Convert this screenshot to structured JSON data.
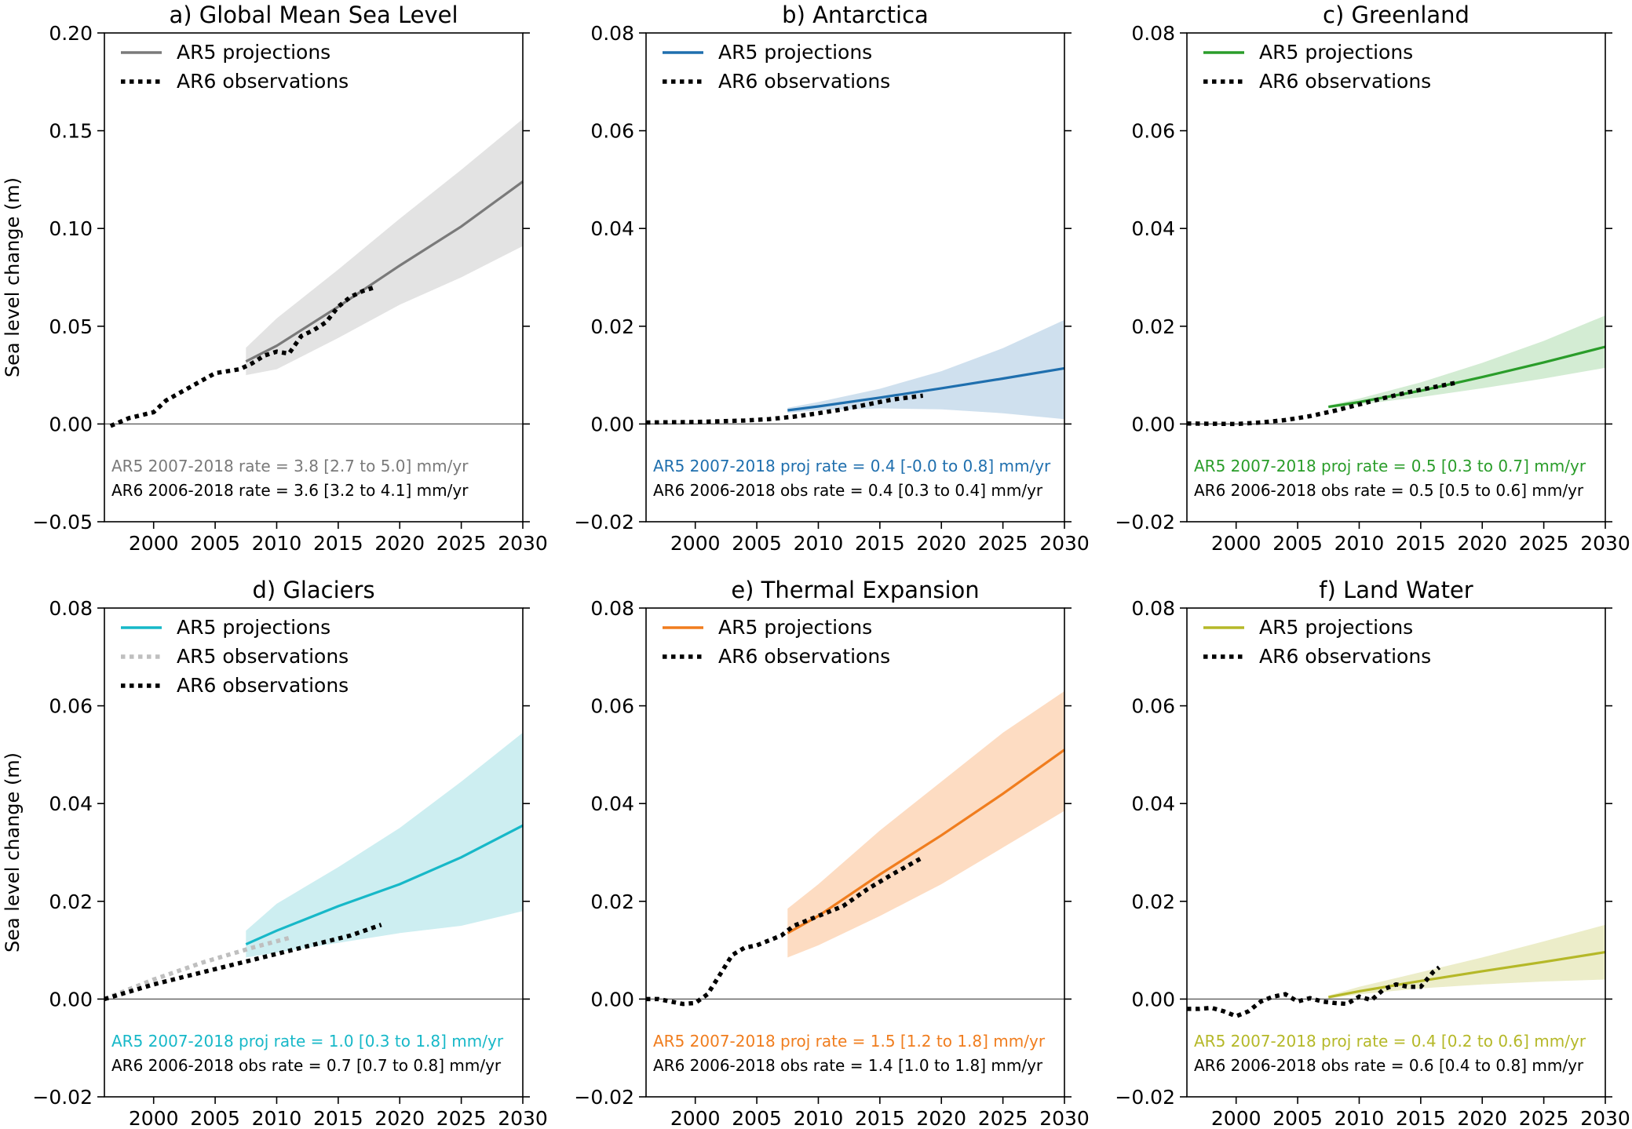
{
  "chart_data": [
    {
      "type": "line",
      "title": "a) Global Mean Sea Level",
      "ylabel": "Sea level change (m)",
      "xlim": [
        1996,
        2030
      ],
      "ylim": [
        -0.05,
        0.2
      ],
      "xticks": [
        2000,
        2005,
        2010,
        2015,
        2020,
        2025,
        2030
      ],
      "yticks": [
        "−0.05",
        "0.00",
        "0.05",
        "0.10",
        "0.15",
        "0.20"
      ],
      "ytick_values": [
        -0.05,
        0,
        0.05,
        0.1,
        0.15,
        0.2
      ],
      "color": "#7a7a7a",
      "band_color": "#e3e3e3",
      "legend": [
        "AR5 projections",
        "AR6 observations"
      ],
      "annotations": [
        {
          "text": "AR5 2007-2018 rate = 3.8 [2.7 to 5.0] mm/yr",
          "color": "#7a7a7a"
        },
        {
          "text": "AR6 2006-2018 rate = 3.6 [3.2 to 4.1] mm/yr",
          "color": "#000000"
        }
      ],
      "projection": {
        "x": [
          2007.5,
          2010,
          2015,
          2020,
          2025,
          2030
        ],
        "y": [
          0.032,
          0.04,
          0.06,
          0.081,
          0.101,
          0.124
        ]
      },
      "band_upper": {
        "x": [
          2007.5,
          2010,
          2015,
          2020,
          2025,
          2030
        ],
        "y": [
          0.039,
          0.054,
          0.079,
          0.105,
          0.13,
          0.156
        ]
      },
      "band_lower": {
        "x": [
          2007.5,
          2010,
          2015,
          2020,
          2025,
          2030
        ],
        "y": [
          0.025,
          0.028,
          0.044,
          0.061,
          0.075,
          0.091
        ]
      },
      "observations": [
        {
          "name": "AR6 observations",
          "color": "#000000",
          "x": [
            1996.5,
            1998,
            2000,
            2001,
            2003,
            2005,
            2007,
            2008,
            2009,
            2010,
            2011,
            2012,
            2013,
            2014,
            2015,
            2016,
            2017,
            2018
          ],
          "y": [
            -0.001,
            0.003,
            0.006,
            0.012,
            0.019,
            0.026,
            0.028,
            0.031,
            0.035,
            0.037,
            0.036,
            0.045,
            0.048,
            0.052,
            0.06,
            0.065,
            0.068,
            0.07
          ]
        }
      ]
    },
    {
      "type": "line",
      "title": "b) Antarctica",
      "ylabel": "",
      "xlim": [
        1996,
        2030
      ],
      "ylim": [
        -0.02,
        0.08
      ],
      "xticks": [
        2000,
        2005,
        2010,
        2015,
        2020,
        2025,
        2030
      ],
      "yticks": [
        "−0.02",
        "0.00",
        "0.02",
        "0.04",
        "0.06",
        "0.08"
      ],
      "ytick_values": [
        -0.02,
        0,
        0.02,
        0.04,
        0.06,
        0.08
      ],
      "color": "#1f6fae",
      "band_color": "#cfe0ee",
      "legend": [
        "AR5 projections",
        "AR6 observations"
      ],
      "annotations": [
        {
          "text": "AR5 2007-2018 proj rate = 0.4 [-0.0 to 0.8] mm/yr",
          "color": "#1f6fae"
        },
        {
          "text": "AR6 2006-2018 obs rate = 0.4 [0.3 to 0.4] mm/yr",
          "color": "#000000"
        }
      ],
      "projection": {
        "x": [
          2007.5,
          2010,
          2015,
          2020,
          2025,
          2030
        ],
        "y": [
          0.0028,
          0.0036,
          0.0054,
          0.0073,
          0.0093,
          0.0114
        ]
      },
      "band_upper": {
        "x": [
          2007.5,
          2010,
          2015,
          2020,
          2025,
          2030
        ],
        "y": [
          0.0033,
          0.0045,
          0.0072,
          0.0108,
          0.0155,
          0.0213
        ]
      },
      "band_lower": {
        "x": [
          2007.5,
          2010,
          2015,
          2020,
          2025,
          2030
        ],
        "y": [
          0.0023,
          0.0028,
          0.0032,
          0.003,
          0.0022,
          0.001
        ]
      },
      "observations": [
        {
          "name": "AR6 observations",
          "color": "#000000",
          "x": [
            1996,
            2000,
            2004,
            2006,
            2008,
            2010,
            2012,
            2014,
            2016,
            2018.5
          ],
          "y": [
            0.0003,
            0.0004,
            0.0007,
            0.001,
            0.0015,
            0.0022,
            0.003,
            0.004,
            0.005,
            0.0058
          ]
        }
      ]
    },
    {
      "type": "line",
      "title": "c) Greenland",
      "ylabel": "",
      "xlim": [
        1996,
        2030
      ],
      "ylim": [
        -0.02,
        0.08
      ],
      "xticks": [
        2000,
        2005,
        2010,
        2015,
        2020,
        2025,
        2030
      ],
      "yticks": [
        "−0.02",
        "0.00",
        "0.02",
        "0.04",
        "0.06",
        "0.08"
      ],
      "ytick_values": [
        -0.02,
        0,
        0.02,
        0.04,
        0.06,
        0.08
      ],
      "color": "#2a9d2a",
      "band_color": "#d3ecd3",
      "legend": [
        "AR5 projections",
        "AR6 observations"
      ],
      "annotations": [
        {
          "text": "AR5 2007-2018 proj rate = 0.5 [0.3 to 0.7] mm/yr",
          "color": "#2a9d2a"
        },
        {
          "text": "AR6 2006-2018 obs rate = 0.5 [0.5 to 0.6] mm/yr",
          "color": "#000000"
        }
      ],
      "projection": {
        "x": [
          2007.5,
          2010,
          2015,
          2020,
          2025,
          2030
        ],
        "y": [
          0.0035,
          0.0045,
          0.0068,
          0.0096,
          0.0126,
          0.0158
        ]
      },
      "band_upper": {
        "x": [
          2007.5,
          2010,
          2015,
          2020,
          2025,
          2030
        ],
        "y": [
          0.0038,
          0.0052,
          0.0085,
          0.0125,
          0.017,
          0.0222
        ]
      },
      "band_lower": {
        "x": [
          2007.5,
          2010,
          2015,
          2020,
          2025,
          2030
        ],
        "y": [
          0.0032,
          0.004,
          0.0055,
          0.0073,
          0.0093,
          0.0115
        ]
      },
      "observations": [
        {
          "name": "AR6 observations",
          "color": "#000000",
          "x": [
            1996,
            2000,
            2002,
            2004,
            2006,
            2008,
            2010,
            2012,
            2014,
            2016,
            2018
          ],
          "y": [
            0.0001,
            0.0,
            0.0003,
            0.0008,
            0.0016,
            0.0027,
            0.004,
            0.0053,
            0.0065,
            0.0075,
            0.0085
          ]
        }
      ]
    },
    {
      "type": "line",
      "title": "d) Glaciers",
      "ylabel": "Sea level change (m)",
      "xlim": [
        1996,
        2030
      ],
      "ylim": [
        -0.02,
        0.08
      ],
      "xticks": [
        2000,
        2005,
        2010,
        2015,
        2020,
        2025,
        2030
      ],
      "yticks": [
        "−0.02",
        "0.00",
        "0.02",
        "0.04",
        "0.06",
        "0.08"
      ],
      "ytick_values": [
        -0.02,
        0,
        0.02,
        0.04,
        0.06,
        0.08
      ],
      "color": "#17b8c8",
      "band_color": "#cdeef1",
      "legend": [
        "AR5 projections",
        "AR5 observations",
        "AR6 observations"
      ],
      "annotations": [
        {
          "text": "AR5 2007-2018 proj rate = 1.0 [0.3 to 1.8] mm/yr",
          "color": "#17b8c8"
        },
        {
          "text": "AR6 2006-2018 obs rate = 0.7 [0.7 to 0.8] mm/yr",
          "color": "#000000"
        }
      ],
      "projection": {
        "x": [
          2007.5,
          2010,
          2015,
          2020,
          2025,
          2030
        ],
        "y": [
          0.0112,
          0.014,
          0.019,
          0.0235,
          0.029,
          0.0355
        ]
      },
      "band_upper": {
        "x": [
          2007.5,
          2010,
          2015,
          2020,
          2025,
          2030
        ],
        "y": [
          0.014,
          0.0195,
          0.027,
          0.035,
          0.0445,
          0.0545
        ]
      },
      "band_lower": {
        "x": [
          2007.5,
          2010,
          2015,
          2020,
          2025,
          2030
        ],
        "y": [
          0.0085,
          0.0095,
          0.0115,
          0.0135,
          0.015,
          0.018
        ]
      },
      "observations": [
        {
          "name": "AR5 observations",
          "color": "#bfbfbf",
          "x": [
            1996,
            2000,
            2004,
            2008,
            2011
          ],
          "y": [
            0.0,
            0.004,
            0.0075,
            0.0105,
            0.0125
          ]
        },
        {
          "name": "AR6 observations",
          "color": "#000000",
          "x": [
            1996,
            2000,
            2004,
            2008,
            2012,
            2016,
            2018.5
          ],
          "y": [
            0.0,
            0.003,
            0.0055,
            0.008,
            0.0105,
            0.013,
            0.0152
          ]
        }
      ]
    },
    {
      "type": "line",
      "title": "e) Thermal Expansion",
      "ylabel": "",
      "xlim": [
        1996,
        2030
      ],
      "ylim": [
        -0.02,
        0.08
      ],
      "xticks": [
        2000,
        2005,
        2010,
        2015,
        2020,
        2025,
        2030
      ],
      "yticks": [
        "−0.02",
        "0.00",
        "0.02",
        "0.04",
        "0.06",
        "0.08"
      ],
      "ytick_values": [
        -0.02,
        0,
        0.02,
        0.04,
        0.06,
        0.08
      ],
      "color": "#f07d1e",
      "band_color": "#fddcc2",
      "legend": [
        "AR5 projections",
        "AR6 observations"
      ],
      "annotations": [
        {
          "text": "AR5 2007-2018 proj rate = 1.5 [1.2 to 1.8] mm/yr",
          "color": "#f07d1e"
        },
        {
          "text": "AR6 2006-2018 obs rate = 1.4 [1.0 to 1.8] mm/yr",
          "color": "#000000"
        }
      ],
      "projection": {
        "x": [
          2007.5,
          2010,
          2015,
          2020,
          2025,
          2030
        ],
        "y": [
          0.0135,
          0.017,
          0.0255,
          0.0335,
          0.042,
          0.051
        ]
      },
      "band_upper": {
        "x": [
          2007.5,
          2010,
          2015,
          2020,
          2025,
          2030
        ],
        "y": [
          0.0185,
          0.0235,
          0.0345,
          0.0445,
          0.0545,
          0.063
        ]
      },
      "band_lower": {
        "x": [
          2007.5,
          2010,
          2015,
          2020,
          2025,
          2030
        ],
        "y": [
          0.0085,
          0.011,
          0.017,
          0.0235,
          0.031,
          0.0385
        ]
      },
      "observations": [
        {
          "name": "AR6 observations",
          "color": "#000000",
          "x": [
            1996,
            1997,
            1998,
            1999,
            2000,
            2001,
            2002,
            2003,
            2004,
            2005,
            2006,
            2007,
            2008,
            2010,
            2012,
            2014,
            2016,
            2018.5
          ],
          "y": [
            0.0,
            0.0,
            -0.0005,
            -0.001,
            -0.0008,
            0.001,
            0.005,
            0.009,
            0.0105,
            0.011,
            0.012,
            0.013,
            0.015,
            0.017,
            0.019,
            0.0225,
            0.0255,
            0.029
          ]
        }
      ]
    },
    {
      "type": "line",
      "title": "f) Land Water",
      "ylabel": "",
      "xlim": [
        1996,
        2030
      ],
      "ylim": [
        -0.02,
        0.08
      ],
      "xticks": [
        2000,
        2005,
        2010,
        2015,
        2020,
        2025,
        2030
      ],
      "yticks": [
        "−0.02",
        "0.00",
        "0.02",
        "0.04",
        "0.06",
        "0.08"
      ],
      "ytick_values": [
        -0.02,
        0,
        0.02,
        0.04,
        0.06,
        0.08
      ],
      "color": "#b5b828",
      "band_color": "#ecedc9",
      "legend": [
        "AR5 projections",
        "AR6 observations"
      ],
      "annotations": [
        {
          "text": "AR5 2007-2018 proj rate = 0.4 [0.2 to 0.6] mm/yr",
          "color": "#b5b828"
        },
        {
          "text": "AR6 2006-2018 obs rate = 0.6 [0.4 to 0.8] mm/yr",
          "color": "#000000"
        }
      ],
      "projection": {
        "x": [
          2007.5,
          2010,
          2015,
          2020,
          2025,
          2030
        ],
        "y": [
          0.0004,
          0.0016,
          0.0037,
          0.0057,
          0.0076,
          0.0096
        ]
      },
      "band_upper": {
        "x": [
          2007.5,
          2010,
          2015,
          2020,
          2025,
          2030
        ],
        "y": [
          0.0007,
          0.0025,
          0.0055,
          0.0085,
          0.0118,
          0.0152
        ]
      },
      "band_lower": {
        "x": [
          2007.5,
          2010,
          2015,
          2020,
          2025,
          2030
        ],
        "y": [
          0.0001,
          0.001,
          0.0022,
          0.003,
          0.0036,
          0.004
        ]
      },
      "observations": [
        {
          "name": "AR6 observations",
          "color": "#000000",
          "x": [
            1996,
            1997,
            1998,
            1999,
            2000,
            2001,
            2002,
            2003,
            2004,
            2005,
            2006,
            2007,
            2008,
            2009,
            2010,
            2011,
            2012,
            2013,
            2014,
            2015,
            2016,
            2016.5
          ],
          "y": [
            -0.002,
            -0.002,
            -0.0018,
            -0.0025,
            -0.0035,
            -0.0025,
            -0.0005,
            0.0005,
            0.001,
            -0.0005,
            0.0002,
            -0.0005,
            -0.0008,
            -0.001,
            0.0005,
            -0.0002,
            0.002,
            0.003,
            0.0025,
            0.0025,
            0.0055,
            0.0065
          ]
        }
      ]
    }
  ]
}
